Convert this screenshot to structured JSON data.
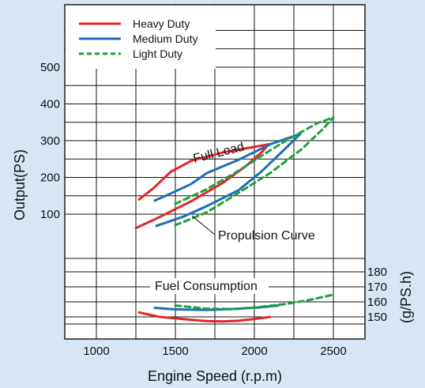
{
  "chart_data": {
    "type": "line",
    "title": "",
    "xlabel": "Engine Speed (r.p.m)",
    "ylabel": "Output(PS)",
    "y2label": "(g/PS.h)",
    "xlim": [
      800,
      2700
    ],
    "x_ticks": [
      1000,
      1500,
      2000,
      2500
    ],
    "ylim": [
      -240,
      670
    ],
    "y_ticks": [
      100,
      200,
      300,
      400,
      500
    ],
    "y2_ticks": [
      150,
      160,
      170,
      180
    ],
    "y2_range": [
      140,
      190
    ],
    "grid": true,
    "legend_position": "top-left",
    "annotations": {
      "full_load": "Full Load",
      "propulsion": "Propulsion Curve",
      "fuel": "Fuel Consumption"
    },
    "colors": {
      "heavy": "#e0262b",
      "medium": "#1f6db4",
      "light": "#1fa040"
    },
    "series": [
      {
        "name": "Heavy Duty",
        "color": "#e0262b",
        "dash": false,
        "full_load": [
          [
            1270,
            140
          ],
          [
            1360,
            170
          ],
          [
            1470,
            215
          ],
          [
            1600,
            245
          ],
          [
            1800,
            268
          ],
          [
            2000,
            283
          ],
          [
            2090,
            290
          ]
        ],
        "propulsion": [
          [
            1250,
            62
          ],
          [
            1400,
            92
          ],
          [
            1600,
            135
          ],
          [
            1800,
            185
          ],
          [
            1950,
            232
          ],
          [
            2050,
            270
          ],
          [
            2090,
            290
          ]
        ],
        "fuel": [
          [
            1270,
            153
          ],
          [
            1400,
            150
          ],
          [
            1600,
            148
          ],
          [
            1700,
            147.2
          ],
          [
            1800,
            147
          ],
          [
            1900,
            147.4
          ],
          [
            2000,
            148.6
          ],
          [
            2100,
            150
          ]
        ]
      },
      {
        "name": "Medium Duty",
        "color": "#1f6db4",
        "dash": false,
        "full_load": [
          [
            1370,
            137
          ],
          [
            1450,
            152
          ],
          [
            1600,
            182
          ],
          [
            1700,
            212
          ],
          [
            1900,
            248
          ],
          [
            2100,
            290
          ],
          [
            2200,
            305
          ],
          [
            2290,
            318
          ]
        ],
        "propulsion": [
          [
            1380,
            68
          ],
          [
            1550,
            93
          ],
          [
            1700,
            122
          ],
          [
            1900,
            165
          ],
          [
            2050,
            218
          ],
          [
            2200,
            280
          ],
          [
            2290,
            318
          ]
        ],
        "fuel": [
          [
            1370,
            156
          ],
          [
            1500,
            155
          ],
          [
            1700,
            154.6
          ],
          [
            1900,
            155.4
          ],
          [
            2050,
            156.4
          ],
          [
            2150,
            157.6
          ]
        ]
      },
      {
        "name": "Light Duty",
        "color": "#1fa040",
        "dash": true,
        "full_load": [
          [
            1500,
            128
          ],
          [
            1700,
            168
          ],
          [
            1900,
            218
          ],
          [
            2050,
            260
          ],
          [
            2200,
            300
          ],
          [
            2400,
            348
          ],
          [
            2500,
            363
          ]
        ],
        "propulsion": [
          [
            1500,
            70
          ],
          [
            1700,
            105
          ],
          [
            1900,
            158
          ],
          [
            2100,
            212
          ],
          [
            2300,
            277
          ],
          [
            2430,
            330
          ],
          [
            2500,
            363
          ]
        ],
        "fuel": [
          [
            1500,
            157.6
          ],
          [
            1700,
            155.5
          ],
          [
            1850,
            155.2
          ],
          [
            2000,
            156.2
          ],
          [
            2200,
            158.6
          ],
          [
            2350,
            161.3
          ],
          [
            2500,
            164.8
          ]
        ]
      }
    ]
  }
}
